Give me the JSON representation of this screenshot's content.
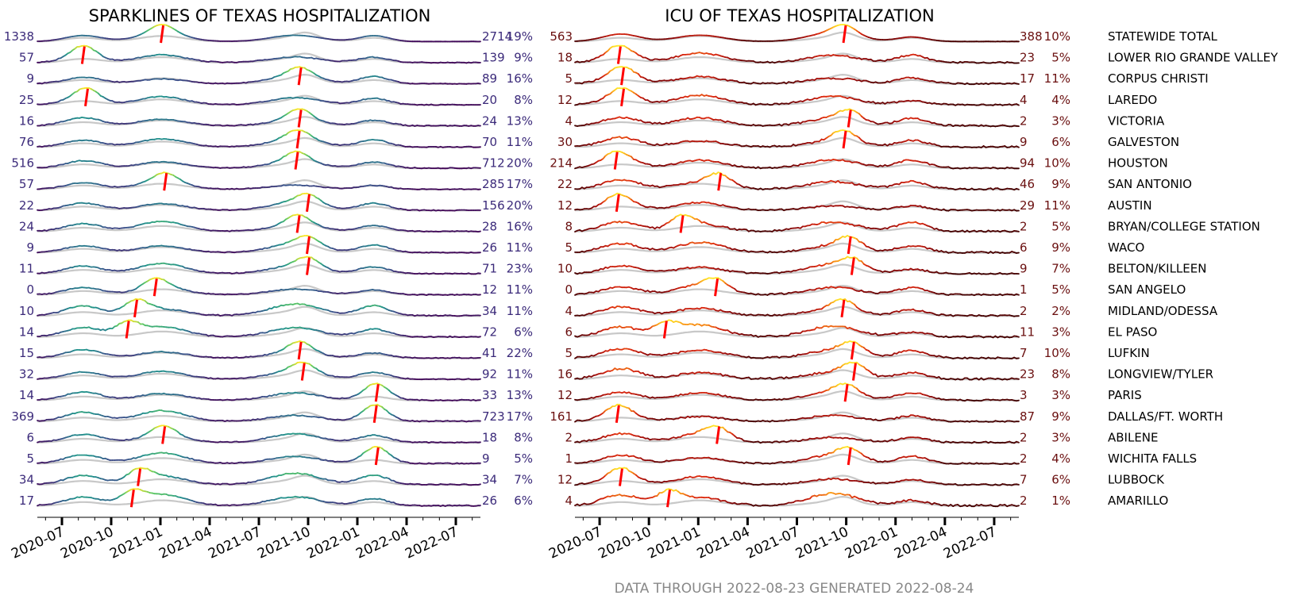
{
  "chart_data": {
    "type": "line",
    "footnote": "DATA THROUGH 2022-08-23 GENERATED 2022-08-24",
    "x_tick_labels": [
      "2020-07",
      "2020-10",
      "2021-01",
      "2021-04",
      "2021-07",
      "2021-10",
      "2022-01",
      "2022-04",
      "2022-07"
    ],
    "x_range": [
      "2020-05",
      "2022-09"
    ],
    "panels": [
      {
        "name": "hospitalization",
        "title": "SPARKLINES OF TEXAS HOSPITALIZATION",
        "colormap": "viridis",
        "marker_color": "#ff0000"
      },
      {
        "name": "icu",
        "title": "ICU OF TEXAS HOSPITALIZATION",
        "colormap": "hot",
        "marker_color": "#ff0000"
      }
    ],
    "rows": [
      {
        "region": "STATEWIDE TOTAL",
        "hosp_min": "1338",
        "hosp_current": "2714",
        "hosp_pct": "19%",
        "hosp_peak_month": 7.1,
        "icu_min": "563",
        "icu_current": "388",
        "icu_pct": "10%",
        "icu_peak_month": 15.9
      },
      {
        "region": "LOWER RIO GRANDE VALLEY",
        "hosp_min": "57",
        "hosp_current": "139",
        "hosp_pct": "9%",
        "hosp_peak_month": 2.3,
        "icu_min": "18",
        "icu_current": "23",
        "icu_pct": "5%",
        "icu_peak_month": 2.2
      },
      {
        "region": "CORPUS CHRISTI",
        "hosp_min": "9",
        "hosp_current": "89",
        "hosp_pct": "16%",
        "hosp_peak_month": 15.5,
        "icu_min": "5",
        "icu_current": "17",
        "icu_pct": "11%",
        "icu_peak_month": 2.4
      },
      {
        "region": "LAREDO",
        "hosp_min": "25",
        "hosp_current": "20",
        "hosp_pct": "8%",
        "hosp_peak_month": 2.5,
        "icu_min": "12",
        "icu_current": "4",
        "icu_pct": "4%",
        "icu_peak_month": 2.4
      },
      {
        "region": "VICTORIA",
        "hosp_min": "16",
        "hosp_current": "24",
        "hosp_pct": "13%",
        "hosp_peak_month": 15.5,
        "icu_min": "4",
        "icu_current": "2",
        "icu_pct": "3%",
        "icu_peak_month": 16.2
      },
      {
        "region": "GALVESTON",
        "hosp_min": "76",
        "hosp_current": "70",
        "hosp_pct": "11%",
        "hosp_peak_month": 15.4,
        "icu_min": "30",
        "icu_current": "9",
        "icu_pct": "6%",
        "icu_peak_month": 15.9
      },
      {
        "region": "HOUSTON",
        "hosp_min": "516",
        "hosp_current": "712",
        "hosp_pct": "20%",
        "hosp_peak_month": 15.3,
        "icu_min": "214",
        "icu_current": "94",
        "icu_pct": "10%",
        "icu_peak_month": 2.0
      },
      {
        "region": "SAN ANTONIO",
        "hosp_min": "57",
        "hosp_current": "285",
        "hosp_pct": "17%",
        "hosp_peak_month": 7.3,
        "icu_min": "22",
        "icu_current": "46",
        "icu_pct": "9%",
        "icu_peak_month": 8.3
      },
      {
        "region": "AUSTIN",
        "hosp_min": "22",
        "hosp_current": "156",
        "hosp_pct": "20%",
        "hosp_peak_month": 16.0,
        "icu_min": "12",
        "icu_current": "29",
        "icu_pct": "11%",
        "icu_peak_month": 2.1
      },
      {
        "region": "BRYAN/COLLEGE STATION",
        "hosp_min": "24",
        "hosp_current": "28",
        "hosp_pct": "16%",
        "hosp_peak_month": 15.4,
        "icu_min": "8",
        "icu_current": "2",
        "icu_pct": "5%",
        "icu_peak_month": 6.0
      },
      {
        "region": "WACO",
        "hosp_min": "9",
        "hosp_current": "26",
        "hosp_pct": "11%",
        "hosp_peak_month": 16.0,
        "icu_min": "5",
        "icu_current": "6",
        "icu_pct": "9%",
        "icu_peak_month": 16.2
      },
      {
        "region": "BELTON/KILLEEN",
        "hosp_min": "11",
        "hosp_current": "71",
        "hosp_pct": "23%",
        "hosp_peak_month": 16.0,
        "icu_min": "10",
        "icu_current": "9",
        "icu_pct": "7%",
        "icu_peak_month": 16.4
      },
      {
        "region": "SAN ANGELO",
        "hosp_min": "0",
        "hosp_current": "12",
        "hosp_pct": "11%",
        "hosp_peak_month": 6.7,
        "icu_min": "0",
        "icu_current": "1",
        "icu_pct": "5%",
        "icu_peak_month": 8.1
      },
      {
        "region": "MIDLAND/ODESSA",
        "hosp_min": "10",
        "hosp_current": "34",
        "hosp_pct": "11%",
        "hosp_peak_month": 5.5,
        "icu_min": "4",
        "icu_current": "2",
        "icu_pct": "2%",
        "icu_peak_month": 15.8
      },
      {
        "region": "EL PASO",
        "hosp_min": "14",
        "hosp_current": "72",
        "hosp_pct": "6%",
        "hosp_peak_month": 5.0,
        "icu_min": "6",
        "icu_current": "11",
        "icu_pct": "3%",
        "icu_peak_month": 5.0
      },
      {
        "region": "LUFKIN",
        "hosp_min": "15",
        "hosp_current": "41",
        "hosp_pct": "22%",
        "hosp_peak_month": 15.5,
        "icu_min": "5",
        "icu_current": "7",
        "icu_pct": "10%",
        "icu_peak_month": 16.4
      },
      {
        "region": "LONGVIEW/TYLER",
        "hosp_min": "32",
        "hosp_current": "92",
        "hosp_pct": "11%",
        "hosp_peak_month": 15.7,
        "icu_min": "16",
        "icu_current": "23",
        "icu_pct": "8%",
        "icu_peak_month": 16.5
      },
      {
        "region": "PARIS",
        "hosp_min": "14",
        "hosp_current": "33",
        "hosp_pct": "13%",
        "hosp_peak_month": 20.2,
        "icu_min": "12",
        "icu_current": "3",
        "icu_pct": "3%",
        "icu_peak_month": 16.0
      },
      {
        "region": "DALLAS/FT. WORTH",
        "hosp_min": "369",
        "hosp_current": "723",
        "hosp_pct": "17%",
        "hosp_peak_month": 20.1,
        "icu_min": "161",
        "icu_current": "87",
        "icu_pct": "9%",
        "icu_peak_month": 2.1
      },
      {
        "region": "ABILENE",
        "hosp_min": "6",
        "hosp_current": "18",
        "hosp_pct": "8%",
        "hosp_peak_month": 7.2,
        "icu_min": "2",
        "icu_current": "2",
        "icu_pct": "3%",
        "icu_peak_month": 8.2
      },
      {
        "region": "WICHITA FALLS",
        "hosp_min": "5",
        "hosp_current": "9",
        "hosp_pct": "5%",
        "hosp_peak_month": 20.2,
        "icu_min": "1",
        "icu_current": "2",
        "icu_pct": "4%",
        "icu_peak_month": 16.2
      },
      {
        "region": "LUBBOCK",
        "hosp_min": "34",
        "hosp_current": "34",
        "hosp_pct": "7%",
        "hosp_peak_month": 5.7,
        "icu_min": "12",
        "icu_current": "7",
        "icu_pct": "6%",
        "icu_peak_month": 2.3
      },
      {
        "region": "AMARILLO",
        "hosp_min": "17",
        "hosp_current": "26",
        "hosp_pct": "6%",
        "hosp_peak_month": 5.3,
        "icu_min": "4",
        "icu_current": "2",
        "icu_pct": "1%",
        "icu_peak_month": 5.2
      }
    ]
  }
}
